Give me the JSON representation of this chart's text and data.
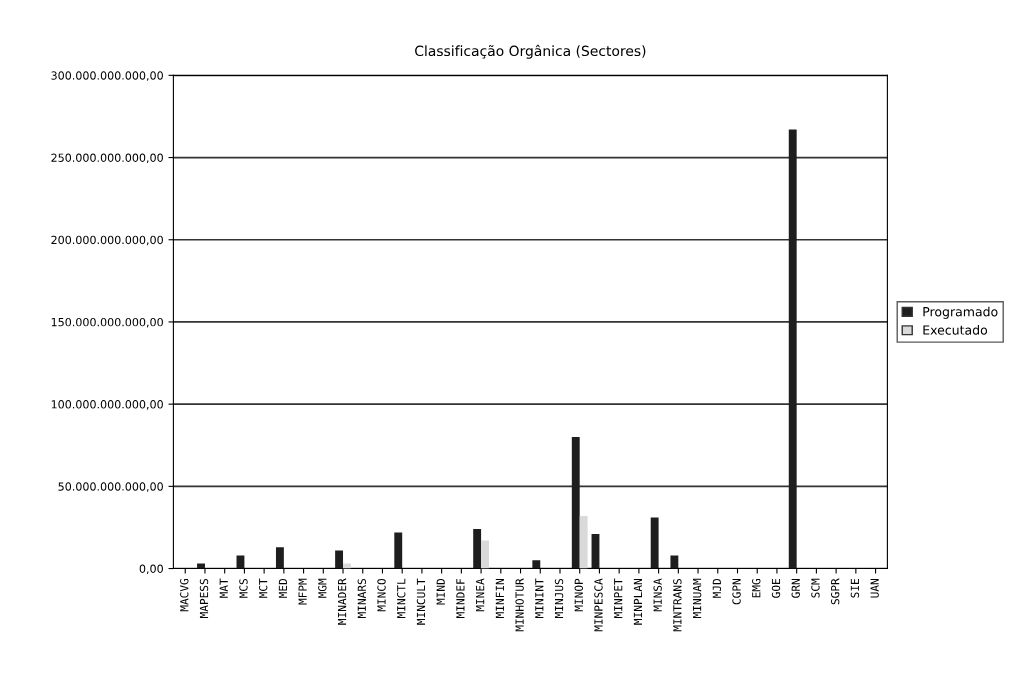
{
  "chart_data": {
    "type": "bar",
    "title": "Classificação Orgânica (Sectores)",
    "categories": [
      "MACVG",
      "MAPESS",
      "MAT",
      "MCS",
      "MCT",
      "MED",
      "MFPM",
      "MGM",
      "MINADER",
      "MINARS",
      "MINCO",
      "MINCTL",
      "MINCULT",
      "MIND",
      "MINDEF",
      "MINEA",
      "MINFIN",
      "MINHOTUR",
      "MININT",
      "MINJUS",
      "MINOP",
      "MINPESCA",
      "MINPET",
      "MINPLAN",
      "MINSA",
      "MINTRANS",
      "MINUAM",
      "MJD",
      "CGPN",
      "EMG",
      "GOE",
      "GRN",
      "SCM",
      "SGPR",
      "SIE",
      "UAN"
    ],
    "series": [
      {
        "name": "Programado",
        "color": "#1e1e1e",
        "values": [
          0,
          3000000000,
          0,
          8000000000,
          0,
          13000000000,
          0,
          0,
          11000000000,
          0,
          0,
          22000000000,
          0,
          0,
          0,
          24000000000,
          0,
          0,
          5000000000,
          0,
          80000000000,
          21000000000,
          0,
          0,
          31000000000,
          8000000000,
          0,
          0,
          0,
          0,
          0,
          267000000000,
          0,
          0,
          0,
          0
        ]
      },
      {
        "name": "Executado",
        "color": "#d9d9d9",
        "values": [
          0,
          0,
          0,
          0,
          0,
          0,
          0,
          0,
          3000000000,
          0,
          0,
          0,
          0,
          0,
          0,
          17000000000,
          0,
          0,
          0,
          0,
          32000000000,
          0,
          0,
          0,
          0,
          0,
          0,
          0,
          0,
          0,
          0,
          0,
          0,
          0,
          0,
          0
        ]
      }
    ],
    "ylim": [
      0,
      300000000000
    ],
    "yticks": [
      {
        "value": 0,
        "label": "0,00"
      },
      {
        "value": 50000000000,
        "label": "50.000.000.000,00"
      },
      {
        "value": 100000000000,
        "label": "100.000.000.000,00"
      },
      {
        "value": 150000000000,
        "label": "150.000.000.000,00"
      },
      {
        "value": 200000000000,
        "label": "200.000.000.000,00"
      },
      {
        "value": 250000000000,
        "label": "250.000.000.000,00"
      },
      {
        "value": 300000000000,
        "label": "300.000.000.000,00"
      }
    ],
    "grid": "y",
    "legend": "right"
  }
}
